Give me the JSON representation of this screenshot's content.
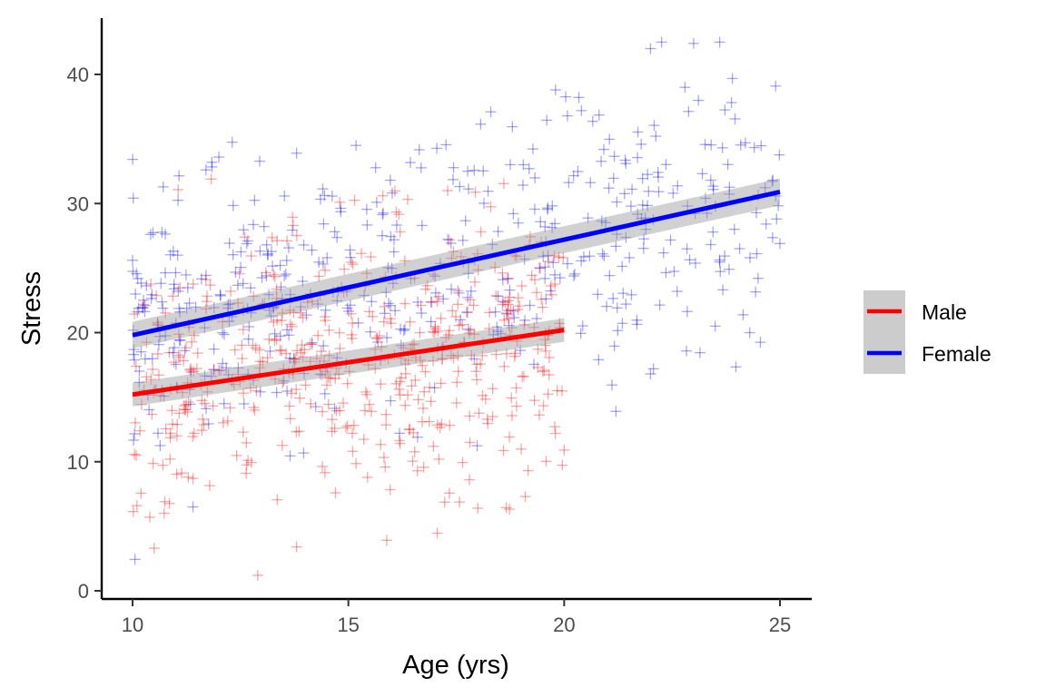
{
  "chart_data": {
    "type": "scatter",
    "title": "",
    "xlabel": "Age (yrs)",
    "ylabel": "Stress",
    "xlim": [
      10,
      25
    ],
    "ylim": [
      0,
      43
    ],
    "x_ticks": [
      10,
      15,
      20,
      25
    ],
    "y_ticks": [
      0,
      10,
      20,
      30,
      40
    ],
    "grid": false,
    "legend_position": "right",
    "marker": "plus",
    "series": [
      {
        "name": "Male",
        "color": "#ff0000",
        "point_count": 500,
        "x_range": [
          10,
          20
        ],
        "fit": {
          "method": "lm",
          "x": [
            10,
            20
          ],
          "y": [
            15.2,
            20.2
          ],
          "se_band_half_width": 0.7
        },
        "sample_points": [
          {
            "x": 10.1,
            "y": 6.6
          },
          {
            "x": 10.5,
            "y": 3.3
          },
          {
            "x": 10.4,
            "y": 5.7
          },
          {
            "x": 12.9,
            "y": 1.2
          },
          {
            "x": 13.8,
            "y": 3.4
          },
          {
            "x": 18.0,
            "y": 6.4
          },
          {
            "x": 19.1,
            "y": 7.3
          },
          {
            "x": 20.0,
            "y": 10.9
          },
          {
            "x": 17.1,
            "y": 10.2
          },
          {
            "x": 15.8,
            "y": 30.6
          },
          {
            "x": 16.2,
            "y": 27.8
          },
          {
            "x": 12.6,
            "y": 27.4
          },
          {
            "x": 14.8,
            "y": 30.1
          },
          {
            "x": 17.3,
            "y": 31.0
          },
          {
            "x": 18.9,
            "y": 25.9
          },
          {
            "x": 11.4,
            "y": 8.7
          },
          {
            "x": 15.1,
            "y": 10.8
          },
          {
            "x": 16.6,
            "y": 9.3
          }
        ]
      },
      {
        "name": "Female",
        "color": "#0000ff",
        "point_count": 500,
        "x_range": [
          10,
          25
        ],
        "fit": {
          "method": "lm",
          "x": [
            10,
            25
          ],
          "y": [
            19.8,
            30.9
          ],
          "se_band_half_width": 0.8
        },
        "sample_points": [
          {
            "x": 22.0,
            "y": 42.0
          },
          {
            "x": 23.0,
            "y": 42.4
          },
          {
            "x": 19.8,
            "y": 38.8
          },
          {
            "x": 24.9,
            "y": 39.1
          },
          {
            "x": 22.8,
            "y": 39.0
          },
          {
            "x": 20.4,
            "y": 37.2
          },
          {
            "x": 18.3,
            "y": 37.1
          },
          {
            "x": 12.0,
            "y": 33.6
          },
          {
            "x": 11.7,
            "y": 32.6
          },
          {
            "x": 13.8,
            "y": 33.9
          },
          {
            "x": 21.2,
            "y": 13.9
          },
          {
            "x": 11.4,
            "y": 6.5
          },
          {
            "x": 22.0,
            "y": 16.8
          },
          {
            "x": 24.3,
            "y": 20.0
          },
          {
            "x": 10.0,
            "y": 25.6
          },
          {
            "x": 25.0,
            "y": 26.9
          },
          {
            "x": 23.5,
            "y": 20.5
          },
          {
            "x": 20.8,
            "y": 17.9
          }
        ]
      }
    ]
  },
  "legend": {
    "items": [
      {
        "label": "Male",
        "color": "#ff0000"
      },
      {
        "label": "Female",
        "color": "#0000ff"
      }
    ],
    "key_background": "#cccccc"
  }
}
